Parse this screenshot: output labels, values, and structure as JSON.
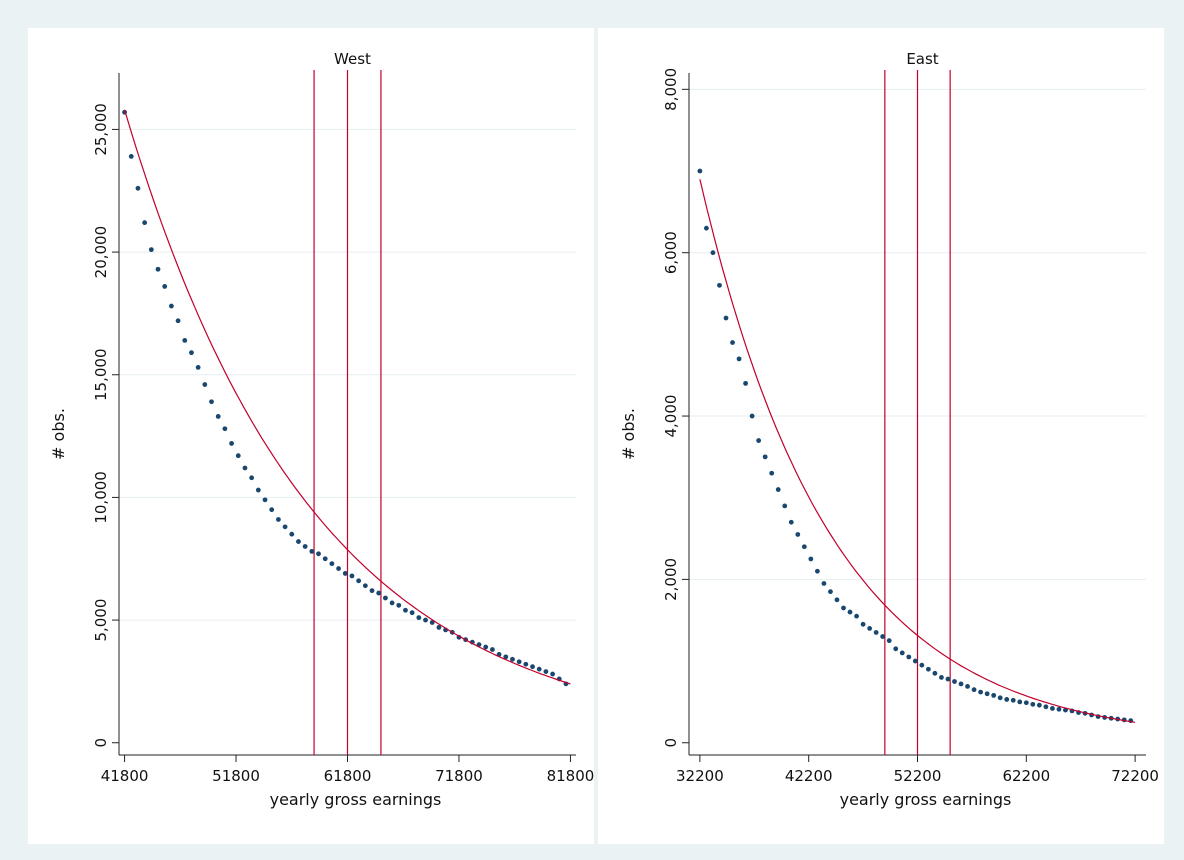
{
  "colors": {
    "background": "#eaf2f3",
    "panel": "#ffffff",
    "points": "#1a476f",
    "fit_line": "#c2002c",
    "ref_lines": "#c2002c",
    "grid": "#e6eef0",
    "axis": "#222222",
    "title": "#1a476f"
  },
  "chart_data": [
    {
      "type": "scatter",
      "title": "West",
      "xlabel": "yearly gross earnings",
      "ylabel": "# obs.",
      "xlim": [
        41300,
        82300
      ],
      "ylim": [
        -500,
        27300
      ],
      "xticks": [
        41800,
        51800,
        61800,
        71800,
        81800
      ],
      "xtick_labels": [
        "41800",
        "51800",
        "61800",
        "71800",
        "81800"
      ],
      "yticks": [
        0,
        5000,
        10000,
        15000,
        20000,
        25000
      ],
      "ytick_labels": [
        "0",
        "5,000",
        "10,000",
        "15,000",
        "20,000",
        "25,000"
      ],
      "grid": true,
      "reference_lines_x": [
        58800,
        61800,
        64800
      ],
      "fit": {
        "label": "fitted curve",
        "x_start": 41800,
        "x_end": 81800,
        "y_start": 25800,
        "y_end": 2400
      },
      "series": [
        {
          "x": [
            41800,
            42400,
            43000,
            43600,
            44200,
            44800,
            45400,
            46000,
            46600,
            47200,
            47800,
            48400,
            49000,
            49600,
            50200,
            50800,
            51400,
            52000,
            52600,
            53200,
            53800,
            54400,
            55000,
            55600,
            56200,
            56800,
            57400,
            58000,
            58600,
            59200,
            59800,
            60400,
            61000,
            61600,
            62200,
            62800,
            63400,
            64000,
            64600,
            65200,
            65800,
            66400,
            67000,
            67600,
            68200,
            68800,
            69400,
            70000,
            70600,
            71200,
            71800,
            72400,
            73000,
            73600,
            74200,
            74800,
            75400,
            76000,
            76600,
            77200,
            77800,
            78400,
            79000,
            79600,
            80200,
            80800,
            81400
          ],
          "y": [
            25700,
            23900,
            22600,
            21200,
            20100,
            19300,
            18600,
            17800,
            17200,
            16400,
            15900,
            15300,
            14600,
            13900,
            13300,
            12800,
            12200,
            11700,
            11200,
            10800,
            10300,
            9900,
            9500,
            9100,
            8800,
            8500,
            8200,
            8000,
            7800,
            7700,
            7500,
            7300,
            7100,
            6900,
            6800,
            6600,
            6400,
            6200,
            6100,
            5900,
            5700,
            5600,
            5400,
            5300,
            5100,
            5000,
            4900,
            4700,
            4600,
            4500,
            4300,
            4200,
            4100,
            4000,
            3900,
            3800,
            3600,
            3500,
            3400,
            3300,
            3200,
            3100,
            3000,
            2900,
            2800,
            2600,
            2400
          ]
        }
      ]
    },
    {
      "type": "scatter",
      "title": "East",
      "xlabel": "yearly gross earnings",
      "ylabel": "# obs.",
      "xlim": [
        31200,
        73200
      ],
      "ylim": [
        -150,
        8200
      ],
      "xticks": [
        32200,
        42200,
        52200,
        62200,
        72200
      ],
      "xtick_labels": [
        "32200",
        "42200",
        "52200",
        "62200",
        "72200"
      ],
      "yticks": [
        0,
        2000,
        4000,
        6000,
        8000
      ],
      "ytick_labels": [
        "0",
        "2,000",
        "4,000",
        "6,000",
        "8,000"
      ],
      "grid": true,
      "reference_lines_x": [
        49200,
        52200,
        55200
      ],
      "fit": {
        "label": "fitted curve",
        "x_start": 32200,
        "x_end": 72200,
        "y_start": 6900,
        "y_end": 250
      },
      "series": [
        {
          "x": [
            32200,
            32800,
            33400,
            34000,
            34600,
            35200,
            35800,
            36400,
            37000,
            37600,
            38200,
            38800,
            39400,
            40000,
            40600,
            41200,
            41800,
            42400,
            43000,
            43600,
            44200,
            44800,
            45400,
            46000,
            46600,
            47200,
            47800,
            48400,
            49000,
            49600,
            50200,
            50800,
            51400,
            52000,
            52600,
            53200,
            53800,
            54400,
            55000,
            55600,
            56200,
            56800,
            57400,
            58000,
            58600,
            59200,
            59800,
            60400,
            61000,
            61600,
            62200,
            62800,
            63400,
            64000,
            64600,
            65200,
            65800,
            66400,
            67000,
            67600,
            68200,
            68800,
            69400,
            70000,
            70600,
            71200,
            71800
          ],
          "y": [
            7000,
            6300,
            6000,
            5600,
            5200,
            4900,
            4700,
            4400,
            4000,
            3700,
            3500,
            3300,
            3100,
            2900,
            2700,
            2550,
            2400,
            2250,
            2100,
            1950,
            1850,
            1750,
            1650,
            1600,
            1550,
            1450,
            1400,
            1350,
            1300,
            1250,
            1150,
            1100,
            1050,
            1000,
            950,
            900,
            850,
            800,
            780,
            750,
            720,
            690,
            650,
            620,
            600,
            580,
            550,
            530,
            520,
            500,
            490,
            470,
            460,
            440,
            420,
            410,
            400,
            390,
            370,
            360,
            340,
            320,
            310,
            300,
            290,
            280,
            270
          ]
        }
      ]
    }
  ]
}
